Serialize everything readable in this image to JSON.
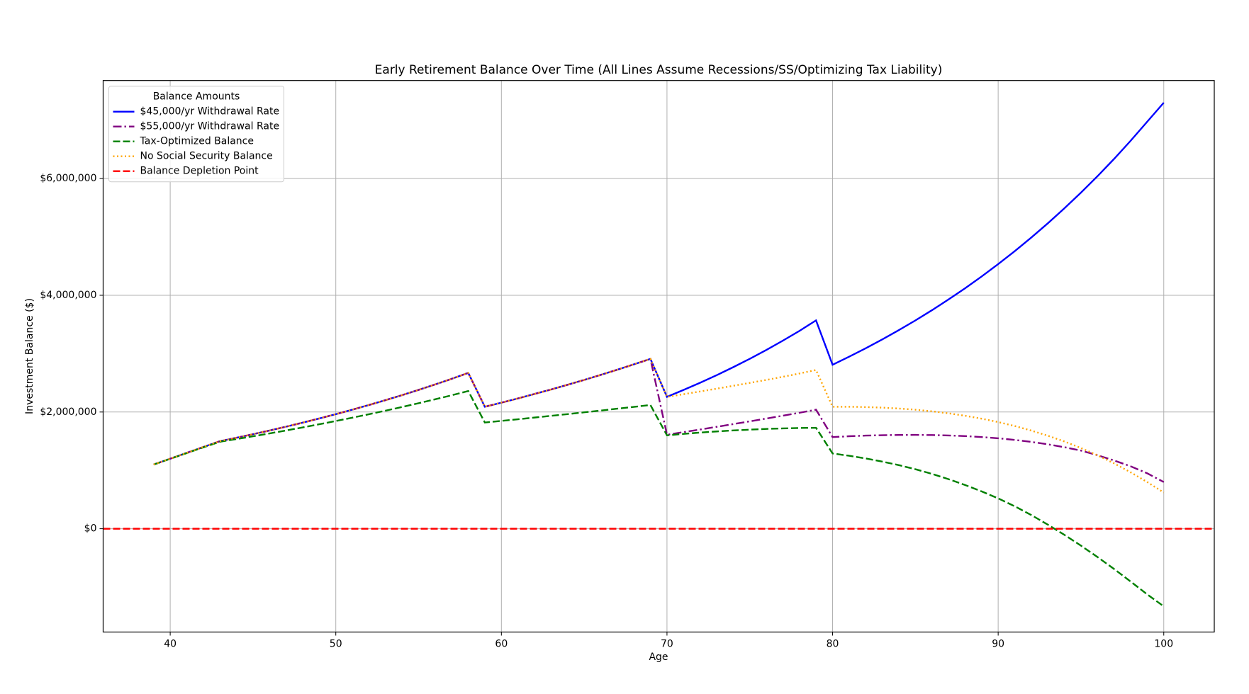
{
  "chart_data": {
    "type": "line",
    "title": "Early Retirement Balance Over Time (All Lines Assume Recessions/SS/Optimizing Tax Liability)",
    "x_label": "Age",
    "y_label": "Investment Balance ($)",
    "legend_title": "Balance Amounts",
    "legend_position": "upper left",
    "grid": true,
    "x": [
      39,
      40,
      41,
      42,
      43,
      44,
      45,
      46,
      47,
      48,
      49,
      50,
      51,
      52,
      53,
      54,
      55,
      56,
      57,
      58,
      59,
      60,
      61,
      62,
      63,
      64,
      65,
      66,
      67,
      68,
      69,
      70,
      71,
      72,
      73,
      74,
      75,
      76,
      77,
      78,
      79,
      80,
      81,
      82,
      83,
      84,
      85,
      86,
      87,
      88,
      89,
      90,
      91,
      92,
      93,
      94,
      95,
      96,
      97,
      98,
      99,
      100
    ],
    "xlim": [
      35.95,
      103.05
    ],
    "xticks": [
      40,
      50,
      60,
      70,
      80,
      90,
      100
    ],
    "ylim": [
      -1770000,
      7680000
    ],
    "yticks": [
      {
        "value": 0,
        "label": "$0"
      },
      {
        "value": 2000000,
        "label": "$2,000,000"
      },
      {
        "value": 4000000,
        "label": "$4,000,000"
      },
      {
        "value": 6000000,
        "label": "$6,000,000"
      }
    ],
    "series": [
      {
        "name": "$45,000/yr Withdrawal Rate",
        "color": "#0000ff",
        "linestyle": "solid",
        "values": [
          1100000,
          1200000,
          1300000,
          1400000,
          1500000,
          1559000,
          1620000,
          1683000,
          1749000,
          1818000,
          1889000,
          1963000,
          2040000,
          2120000,
          2203000,
          2289000,
          2379000,
          2472000,
          2569000,
          2670000,
          2090000,
          2160000,
          2233000,
          2309000,
          2386000,
          2467000,
          2550000,
          2636000,
          2725000,
          2817000,
          2910000,
          2260000,
          2378000,
          2501000,
          2631000,
          2768000,
          2912000,
          3063000,
          3223000,
          3390000,
          3570000,
          2810000,
          2948000,
          3092000,
          3244000,
          3403000,
          3569000,
          3744000,
          3928000,
          4120000,
          4322000,
          4534000,
          4756000,
          4989000,
          5234000,
          5490000,
          5759000,
          6041000,
          6337000,
          6648000,
          6974000,
          7300000
        ]
      },
      {
        "name": "$55,000/yr Withdrawal Rate",
        "color": "#800080",
        "linestyle": "dashdot",
        "values": [
          1100000,
          1200000,
          1300000,
          1400000,
          1500000,
          1559000,
          1620000,
          1683000,
          1749000,
          1818000,
          1889000,
          1963000,
          2040000,
          2120000,
          2203000,
          2289000,
          2379000,
          2472000,
          2569000,
          2670000,
          2090000,
          2160000,
          2233000,
          2309000,
          2386000,
          2467000,
          2550000,
          2636000,
          2725000,
          2817000,
          2910000,
          1610000,
          1655000,
          1700000,
          1746000,
          1793000,
          1840000,
          1888000,
          1937000,
          1987000,
          2040000,
          1570000,
          1585000,
          1596000,
          1603000,
          1607000,
          1608000,
          1605000,
          1598000,
          1587000,
          1571000,
          1550000,
          1522000,
          1488000,
          1446000,
          1397000,
          1339000,
          1260000,
          1170000,
          1070000,
          950000,
          800000
        ]
      },
      {
        "name": "Tax-Optimized Balance",
        "color": "#008000",
        "linestyle": "dashed",
        "values": [
          1100000,
          1198000,
          1296000,
          1394000,
          1490000,
          1536000,
          1584000,
          1633000,
          1684000,
          1736000,
          1790000,
          1846000,
          1903000,
          1962000,
          2023000,
          2086000,
          2151000,
          2218000,
          2287000,
          2360000,
          1820000,
          1848000,
          1876000,
          1905000,
          1935000,
          1964000,
          1995000,
          2025000,
          2057000,
          2088000,
          2120000,
          1600000,
          1625000,
          1648000,
          1667000,
          1684000,
          1698000,
          1710000,
          1719000,
          1726000,
          1730000,
          1290000,
          1250000,
          1205000,
          1150000,
          1090000,
          1020000,
          940000,
          850000,
          750000,
          640000,
          520000,
          385000,
          235000,
          70000,
          -105000,
          -290000,
          -485000,
          -690000,
          -905000,
          -1125000,
          -1330000
        ]
      },
      {
        "name": "No Social Security Balance",
        "color": "#ffa500",
        "linestyle": "dotted",
        "values": [
          1100000,
          1200000,
          1300000,
          1400000,
          1500000,
          1559000,
          1620000,
          1683000,
          1749000,
          1818000,
          1889000,
          1963000,
          2040000,
          2120000,
          2203000,
          2289000,
          2379000,
          2472000,
          2569000,
          2670000,
          2090000,
          2160000,
          2233000,
          2309000,
          2386000,
          2467000,
          2550000,
          2636000,
          2725000,
          2817000,
          2910000,
          2260000,
          2305000,
          2352000,
          2400000,
          2449000,
          2499000,
          2550000,
          2603000,
          2660000,
          2720000,
          2090000,
          2090000,
          2085000,
          2075000,
          2060000,
          2040000,
          2012000,
          1978000,
          1936000,
          1886000,
          1828000,
          1760000,
          1682000,
          1594000,
          1495000,
          1383000,
          1258000,
          1120000,
          967000,
          800000,
          620000
        ]
      }
    ],
    "hline": {
      "name": "Balance Depletion Point",
      "color": "#ff0000",
      "linestyle": "dashed",
      "value": 0
    }
  }
}
